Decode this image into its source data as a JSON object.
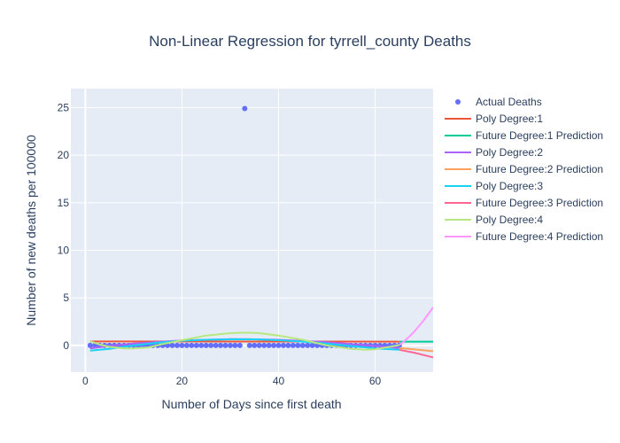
{
  "chart_data": {
    "type": "scatter",
    "title": "Non-Linear Regression for tyrrell_county Deaths",
    "xlabel": "Number of Days since first death",
    "ylabel": "Number of new deaths per 100000",
    "xlim": [
      -3,
      72
    ],
    "ylim": [
      -2.8,
      27
    ],
    "x_ticks": [
      0,
      20,
      40,
      60
    ],
    "y_ticks": [
      0,
      5,
      10,
      15,
      20,
      25
    ],
    "grid": true,
    "legend_position": "right",
    "background_color": "#E5ECF6",
    "series": [
      {
        "name": "Actual Deaths",
        "kind": "markers",
        "color": "#636EFA",
        "x": [
          1,
          2,
          3,
          4,
          5,
          6,
          7,
          8,
          9,
          10,
          11,
          12,
          13,
          14,
          15,
          16,
          17,
          18,
          19,
          20,
          21,
          22,
          23,
          24,
          25,
          26,
          27,
          28,
          29,
          30,
          31,
          32,
          33,
          34,
          35,
          36,
          37,
          38,
          39,
          40,
          41,
          42,
          43,
          44,
          45,
          46,
          47,
          48,
          49,
          50,
          51,
          52,
          53,
          54,
          55,
          56,
          57,
          58,
          59,
          60,
          61,
          62,
          63,
          64,
          65
        ],
        "y": [
          0,
          0,
          0,
          0,
          0,
          0,
          0,
          0,
          0,
          0,
          0,
          0,
          0,
          0,
          0,
          0,
          0,
          0,
          0,
          0,
          0,
          0,
          0,
          0,
          0,
          0,
          0,
          0,
          0,
          0,
          0,
          0,
          24.9,
          0,
          0,
          0,
          0,
          0,
          0,
          0,
          0,
          0,
          0,
          0,
          0,
          0,
          0,
          0,
          0,
          0,
          0,
          0,
          0,
          0,
          0,
          0,
          0,
          0,
          0,
          0,
          0,
          0,
          0,
          0,
          0
        ]
      },
      {
        "name": "Poly Degree:1",
        "kind": "line",
        "color": "#EF553B",
        "x": [
          1,
          65
        ],
        "y": [
          0.42,
          0.4
        ]
      },
      {
        "name": "Future Degree:1 Prediction",
        "kind": "line",
        "color": "#00CC96",
        "x": [
          65,
          72
        ],
        "y": [
          0.4,
          0.4
        ]
      },
      {
        "name": "Poly Degree:2",
        "kind": "line",
        "color": "#AB63FA",
        "x": [
          1,
          5,
          10,
          20,
          30,
          33,
          40,
          50,
          60,
          65
        ],
        "y": [
          -0.3,
          -0.05,
          0.2,
          0.52,
          0.66,
          0.67,
          0.6,
          0.35,
          -0.05,
          -0.28
        ]
      },
      {
        "name": "Future Degree:2 Prediction",
        "kind": "line",
        "color": "#FFA15A",
        "x": [
          65,
          68,
          72
        ],
        "y": [
          -0.28,
          -0.4,
          -0.6
        ]
      },
      {
        "name": "Poly Degree:3",
        "kind": "line",
        "color": "#19D3F3",
        "x": [
          1,
          5,
          10,
          15,
          20,
          25,
          30,
          35,
          40,
          45,
          50,
          55,
          60,
          65
        ],
        "y": [
          -0.55,
          -0.35,
          0.0,
          0.3,
          0.5,
          0.6,
          0.65,
          0.65,
          0.55,
          0.4,
          0.2,
          -0.05,
          -0.3,
          -0.45
        ]
      },
      {
        "name": "Future Degree:3 Prediction",
        "kind": "line",
        "color": "#FF6692",
        "x": [
          65,
          68,
          70,
          72
        ],
        "y": [
          -0.45,
          -0.75,
          -1.0,
          -1.25
        ]
      },
      {
        "name": "Poly Degree:4",
        "kind": "line",
        "color": "#B6E880",
        "x": [
          1,
          3,
          5,
          8,
          10,
          13,
          16,
          20,
          25,
          30,
          33,
          36,
          40,
          45,
          50,
          55,
          58,
          60,
          63,
          65
        ],
        "y": [
          0.45,
          0.1,
          -0.15,
          -0.3,
          -0.3,
          -0.2,
          0.15,
          0.55,
          1.05,
          1.3,
          1.35,
          1.3,
          1.05,
          0.6,
          0.0,
          -0.35,
          -0.45,
          -0.4,
          -0.15,
          0.05
        ]
      },
      {
        "name": "Future Degree:4 Prediction",
        "kind": "line",
        "color": "#FF97FF",
        "x": [
          65,
          66,
          67,
          68,
          69,
          70,
          71,
          72
        ],
        "y": [
          0.05,
          0.45,
          0.9,
          1.4,
          2.0,
          2.6,
          3.3,
          4.0
        ]
      }
    ]
  }
}
